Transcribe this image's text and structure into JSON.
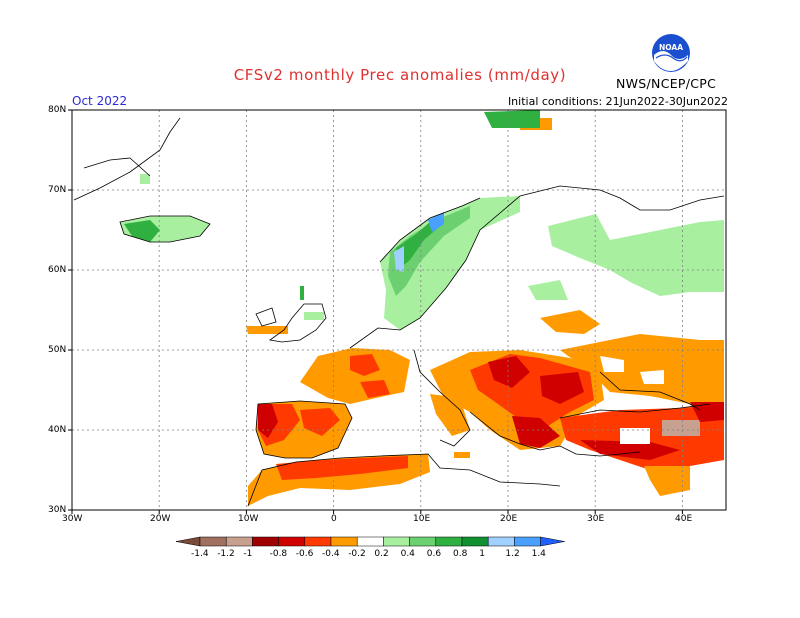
{
  "header": {
    "title": "CFSv2 monthly Prec anomalies (mm/day)",
    "month": "Oct 2022",
    "initial_conditions": "Initial conditions: 21Jun2022-30Jun2022",
    "agency": "NWS/NCEP/CPC",
    "logo_text": "NOAA"
  },
  "axes": {
    "lat_labels": [
      "80N",
      "70N",
      "60N",
      "50N",
      "40N",
      "30N"
    ],
    "lon_labels": [
      "30W",
      "20W",
      "10W",
      "0",
      "10E",
      "20E",
      "30E",
      "40E"
    ]
  },
  "legend": {
    "labels": [
      "-1.4",
      "-1.2",
      "-1",
      "-0.8",
      "-0.6",
      "-0.4",
      "-0.2",
      "0.2",
      "0.4",
      "0.6",
      "0.8",
      "1",
      "1.2",
      "1.4"
    ],
    "colors": [
      "#7a4a3a",
      "#a07060",
      "#c8a090",
      "#a00000",
      "#d00000",
      "#ff3a00",
      "#ff9a00",
      "#ffffff",
      "#a8f0a0",
      "#6cd070",
      "#30b040",
      "#109030",
      "#a0d0ff",
      "#4aa0ff",
      "#2060ff"
    ]
  }
}
